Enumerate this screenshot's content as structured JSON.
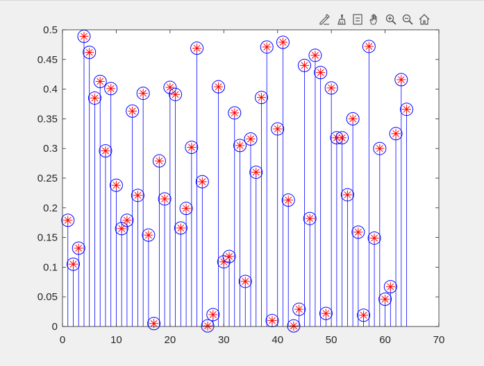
{
  "toolbar": {
    "tools": [
      {
        "name": "edit-plot-icon"
      },
      {
        "name": "brush-icon"
      },
      {
        "name": "data-tips-icon"
      },
      {
        "name": "pan-icon"
      },
      {
        "name": "zoom-in-icon"
      },
      {
        "name": "zoom-out-icon"
      },
      {
        "name": "home-icon"
      }
    ]
  },
  "colors": {
    "stem": "#0000ff",
    "circle": "#0000ff",
    "star": "#ff0000",
    "axes": "#262626",
    "plot_bg": "#ffffff",
    "figure_bg": "#f0f0f0"
  },
  "chart_data": {
    "type": "stem",
    "markers": [
      "circle",
      "star"
    ],
    "xlim": [
      0,
      70
    ],
    "ylim": [
      0,
      0.5
    ],
    "xticks": [
      "0",
      "10",
      "20",
      "30",
      "40",
      "50",
      "60",
      "70"
    ],
    "yticks": [
      "0",
      "0.05",
      "0.1",
      "0.15",
      "0.2",
      "0.25",
      "0.3",
      "0.35",
      "0.4",
      "0.45",
      "0.5"
    ],
    "xtick_values": [
      0,
      10,
      20,
      30,
      40,
      50,
      60,
      70
    ],
    "ytick_values": [
      0,
      0.05,
      0.1,
      0.15,
      0.2,
      0.25,
      0.3,
      0.35,
      0.4,
      0.45,
      0.5
    ],
    "x": [
      1,
      2,
      3,
      4,
      5,
      6,
      7,
      8,
      9,
      10,
      11,
      12,
      13,
      14,
      15,
      16,
      17,
      18,
      19,
      20,
      21,
      22,
      23,
      24,
      25,
      26,
      27,
      28,
      29,
      30,
      31,
      32,
      33,
      34,
      35,
      36,
      37,
      38,
      39,
      40,
      41,
      42,
      43,
      44,
      45,
      46,
      47,
      48,
      49,
      50,
      51,
      52,
      53,
      54,
      55,
      56,
      57,
      58,
      59,
      60,
      61,
      62,
      63,
      64
    ],
    "y": [
      0.179,
      0.105,
      0.132,
      0.489,
      0.462,
      0.385,
      0.413,
      0.296,
      0.401,
      0.238,
      0.165,
      0.179,
      0.363,
      0.221,
      0.393,
      0.154,
      0.005,
      0.279,
      0.215,
      0.403,
      0.391,
      0.166,
      0.199,
      0.302,
      0.469,
      0.244,
      0.001,
      0.02,
      0.404,
      0.109,
      0.118,
      0.36,
      0.305,
      0.076,
      0.316,
      0.26,
      0.386,
      0.471,
      0.01,
      0.333,
      0.479,
      0.213,
      0.001,
      0.029,
      0.44,
      0.182,
      0.457,
      0.428,
      0.022,
      0.402,
      0.318,
      0.318,
      0.222,
      0.35,
      0.159,
      0.019,
      0.472,
      0.149,
      0.3,
      0.046,
      0.067,
      0.325,
      0.416,
      0.366
    ]
  }
}
